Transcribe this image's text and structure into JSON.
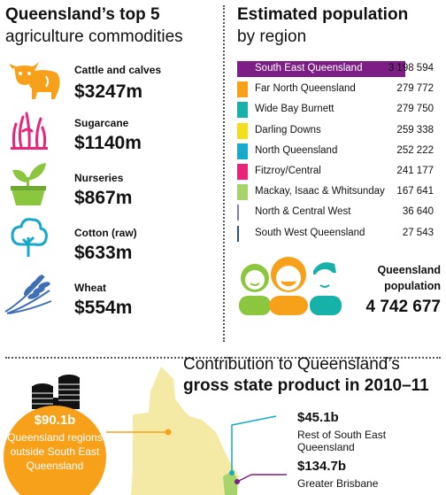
{
  "commodities": {
    "title_bold": "Queensland’s top 5",
    "title_light": "agriculture commodities",
    "items": [
      {
        "name": "Cattle and calves",
        "value": "$3247m",
        "icon": "cattle-icon",
        "color": "#f7a11a"
      },
      {
        "name": "Sugarcane",
        "value": "$1140m",
        "icon": "sugarcane-icon",
        "color": "#e6257b"
      },
      {
        "name": "Nurseries",
        "value": "$867m",
        "icon": "nursery-plant-icon",
        "color": "#8cc63f"
      },
      {
        "name": "Cotton (raw)",
        "value": "$633m",
        "icon": "cotton-tree-icon",
        "color": "#16a9c9"
      },
      {
        "name": "Wheat",
        "value": "$554m",
        "icon": "wheat-icon",
        "color": "#3f6fb5"
      }
    ]
  },
  "population": {
    "title_bold": "Estimated population",
    "title_light": "by region",
    "regions": [
      {
        "name": "South East Queensland",
        "value": "3 198 594",
        "color": "#7c1e84"
      },
      {
        "name": "Far North Queensland",
        "value": "279 772",
        "color": "#f7a11a"
      },
      {
        "name": "Wide Bay Burnett",
        "value": "279 750",
        "color": "#16b1a8"
      },
      {
        "name": "Darling Downs",
        "value": "259 338",
        "color": "#f2df1b"
      },
      {
        "name": "North Queensland",
        "value": "252 222",
        "color": "#16a9c9"
      },
      {
        "name": "Fitzroy/Central",
        "value": "241 177",
        "color": "#e6257b"
      },
      {
        "name": "Mackay, Isaac & Whitsunday",
        "value": "167 641",
        "color": "#a6d46b"
      },
      {
        "name": "North & Central West",
        "value": "36 640",
        "color": "#8a7aa8"
      },
      {
        "name": "South West Queensland",
        "value": "27 543",
        "color": "#2a4f8a"
      }
    ],
    "total_label_line1": "Queensland",
    "total_label_line2": "population",
    "total_value": "4 742 677"
  },
  "gsp": {
    "title_line1": "Contribution to Queensland’s",
    "title_line2": "gross state product in 2010–11",
    "outside_value": "$90.1b",
    "outside_label_lines": [
      "Queensland regions",
      "outside South East",
      "Queensland"
    ],
    "rest_see_value": "$45.1b",
    "rest_see_label": "Rest of South East Queensland",
    "brisbane_value": "$134.7b",
    "brisbane_label": "Greater Brisbane",
    "colors": {
      "circle": "#f7a11a",
      "map": "#f4eaa6",
      "rest_line": "#16a9c9",
      "brisbane_line": "#7c1e84",
      "coins": "#111111"
    }
  }
}
